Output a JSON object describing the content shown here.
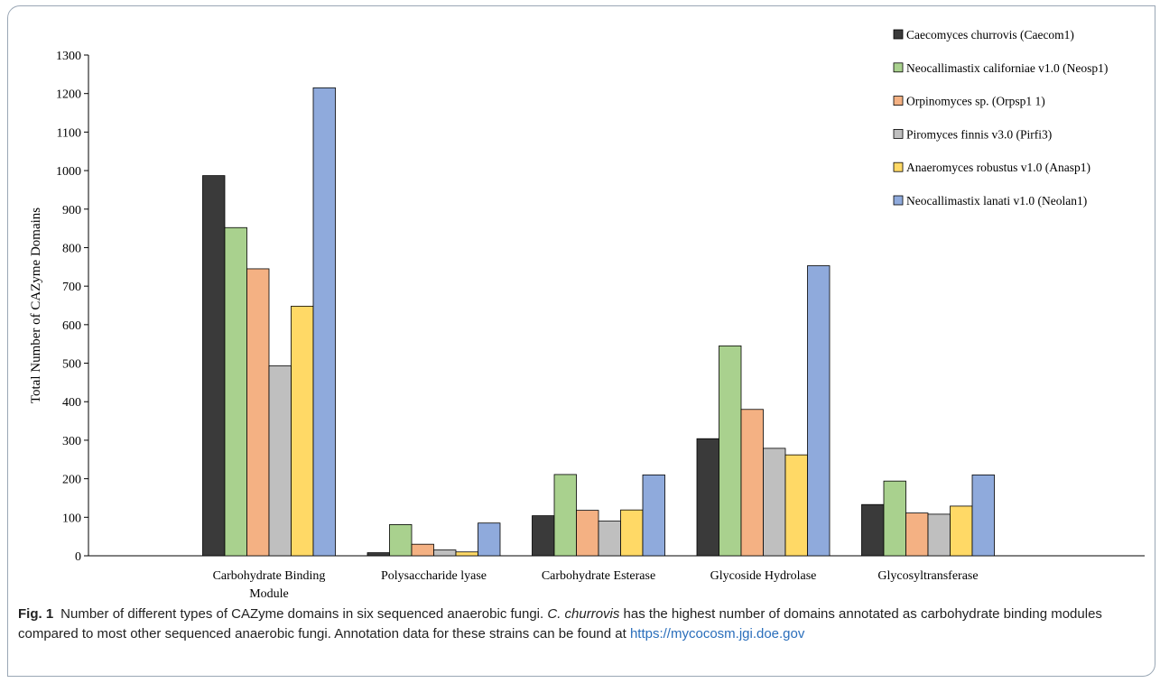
{
  "chart_data": {
    "type": "bar",
    "title": "",
    "xlabel": "",
    "ylabel": "Total Number of CAZyme Domains",
    "ylim": [
      0,
      1300
    ],
    "yticks": [
      0,
      100,
      200,
      300,
      400,
      500,
      600,
      700,
      800,
      900,
      1000,
      1100,
      1200,
      1300
    ],
    "categories": [
      [
        "Carbohydrate Binding",
        "Module"
      ],
      [
        "Polysaccharide lyase"
      ],
      [
        "Carbohydrate Esterase"
      ],
      [
        "Glycoside Hydrolase"
      ],
      [
        "Glycosyltransferase"
      ]
    ],
    "legend_position": "top-right",
    "grid": false,
    "series": [
      {
        "name": "Caecomyces churrovis (Caecom1)",
        "color": "#3a3a3a",
        "values": [
          987,
          8,
          104,
          304,
          133
        ]
      },
      {
        "name": "Neocallimastix californiae v1.0 (Neosp1)",
        "color": "#a9d18e",
        "values": [
          852,
          81,
          211,
          545,
          194
        ]
      },
      {
        "name": "Orpinomyces sp. (Orpsp1 1)",
        "color": "#f4b183",
        "values": [
          745,
          30,
          118,
          380,
          111
        ]
      },
      {
        "name": "Piromyces finnis v3.0 (Pirfi3)",
        "color": "#bfbfbf",
        "values": [
          493,
          15,
          90,
          279,
          108
        ]
      },
      {
        "name": "Anaeromyces robustus v1.0 (Anasp1)",
        "color": "#ffd966",
        "values": [
          648,
          10,
          119,
          262,
          129
        ]
      },
      {
        "name": "Neocallimastix lanati v1.0 (Neolan1)",
        "color": "#8faadc",
        "values": [
          1215,
          85,
          210,
          753,
          210
        ]
      }
    ]
  },
  "caption": {
    "fig_num": "Fig. 1",
    "text_1": "Number of different types of CAZyme domains in six sequenced anaerobic fungi. ",
    "species": "C. churrovis",
    "text_2": " has the highest number of domains annotated as carbohydrate binding modules compared to most other sequenced anaerobic fungi. Annotation data for these strains can be found at ",
    "link": "https://mycocosm.jgi.doe.gov"
  }
}
